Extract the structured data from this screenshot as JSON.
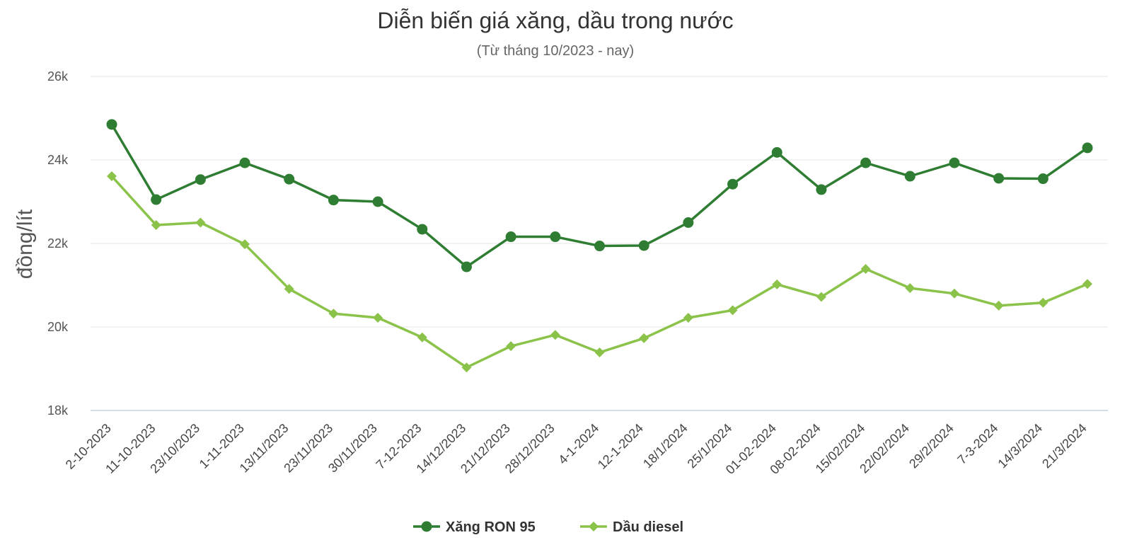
{
  "chart_data": {
    "type": "line",
    "title": "Diễn biến giá xăng, dầu trong nước",
    "subtitle": "(Từ tháng 10/2023 - nay)",
    "ylabel": "đồng/lít",
    "xlabel": "",
    "ylim": [
      18000,
      26000
    ],
    "yticks": [
      18000,
      20000,
      22000,
      24000,
      26000
    ],
    "ytick_labels": [
      "18k",
      "20k",
      "22k",
      "24k",
      "26k"
    ],
    "grid": true,
    "legend_position": "bottom-center",
    "categories": [
      "2-10-2023",
      "11-10-2023",
      "23/10/2023",
      "1-11-2023",
      "13/11/2023",
      "23/11/2023",
      "30/11/2023",
      "7-12-2023",
      "14/12/2023",
      "21/12/2023",
      "28/12/2023",
      "4-1-2024",
      "12-1-2024",
      "18/1/2024",
      "25/1/2024",
      "01-02-2024",
      "08-02-2024",
      "15/02/2024",
      "22/02/2024",
      "29/2/2024",
      "7-3-2024",
      "14/3/2024",
      "21/3/2024"
    ],
    "series": [
      {
        "name": "Xăng RON 95",
        "color": "#2e7d32",
        "marker": "circle",
        "values": [
          24850,
          23050,
          23530,
          23930,
          23540,
          23040,
          23000,
          22340,
          21440,
          22160,
          22160,
          21940,
          21950,
          22500,
          23420,
          24180,
          23290,
          23930,
          23610,
          23930,
          23560,
          23550,
          24290
        ]
      },
      {
        "name": "Dầu diesel",
        "color": "#8bc34a",
        "marker": "diamond",
        "values": [
          23610,
          22440,
          22500,
          21980,
          20910,
          20320,
          20220,
          19750,
          19030,
          19540,
          19810,
          19390,
          19730,
          20220,
          20400,
          21020,
          20720,
          21390,
          20930,
          20800,
          20510,
          20580,
          21030
        ]
      }
    ]
  }
}
